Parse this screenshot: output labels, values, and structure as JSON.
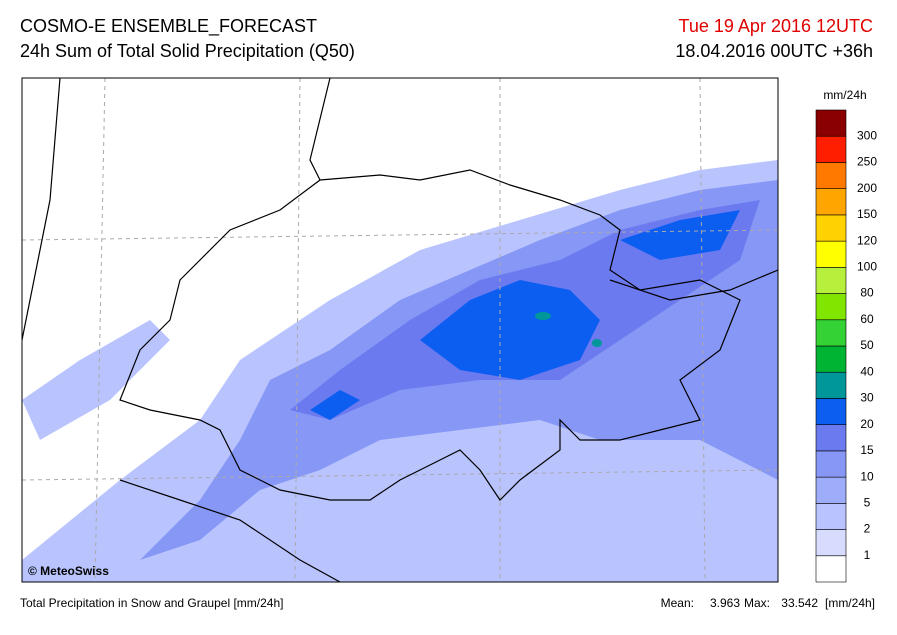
{
  "header": {
    "title": "COSMO-E ENSEMBLE_FORECAST",
    "subtitle": "24h Sum of Total Solid Precipitation (Q50)",
    "valid_time": "Tue 19 Apr 2016 12UTC",
    "run_time": "18.04.2016 00UTC +36h"
  },
  "map": {
    "credit": "© MeteoSwiss"
  },
  "legend": {
    "unit": "mm/24h",
    "levels": [
      1,
      2,
      5,
      10,
      15,
      20,
      30,
      40,
      50,
      60,
      80,
      100,
      120,
      150,
      200,
      250,
      300
    ],
    "colors": [
      "#ffffff",
      "#d7dcff",
      "#b9c4ff",
      "#9eadfa",
      "#8797f5",
      "#6c7af0",
      "#0c5ef0",
      "#00979b",
      "#00b433",
      "#34d234",
      "#80e600",
      "#b6f03c",
      "#ffff00",
      "#ffd200",
      "#ffa500",
      "#ff7800",
      "#ff1e00",
      "#8a0000"
    ]
  },
  "footer": {
    "description": "Total Precipitation in Snow and Graupel [mm/24h]",
    "mean_label": "Mean:",
    "mean": 3.963,
    "max_label": "Max:",
    "max": 33.542,
    "unit": "[mm/24h]"
  }
}
